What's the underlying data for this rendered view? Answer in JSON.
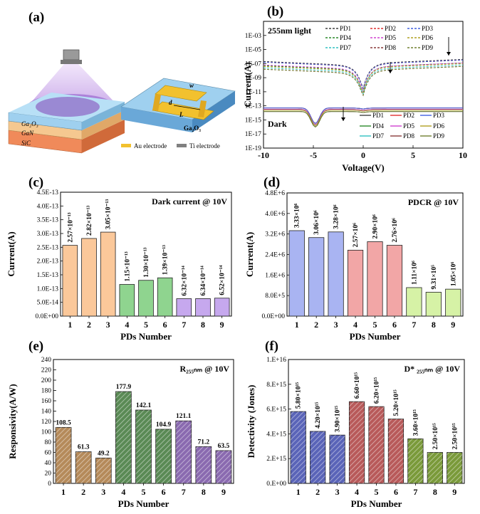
{
  "panel_labels": {
    "a": "(a)",
    "b": "(b)",
    "c": "(c)",
    "d": "(d)",
    "e": "(e)",
    "f": "(f)"
  },
  "schematic": {
    "layer_ga2o3": "Ga₂O₃",
    "layer_gan": "GaN",
    "layer_sic": "SiC",
    "device_substrate": "Ga₂O₃",
    "dim_w": "w",
    "dim_d": "d",
    "dim_l": "L",
    "legend_au": "Au electrode",
    "legend_ti": "Ti electrode",
    "colors": {
      "au": "#f2c12e",
      "ti": "#808080",
      "gan": "#f5c890",
      "sic": "#f08a5a",
      "ga2o3": "#9fd0ef",
      "light": "#c9a6e6"
    }
  },
  "chart_data": [
    {
      "panel": "b",
      "type": "line",
      "annotations": [
        "255nm light",
        "Dark"
      ],
      "xlabel": "Voltage(V)",
      "ylabel": "Current(A)",
      "xlim": [
        -10,
        10
      ],
      "ylim_log10": [
        -19,
        -1
      ],
      "xticks": [
        "-10",
        "-5",
        "0",
        "5",
        "10"
      ],
      "yticks": [
        "1E-19",
        "1E-17",
        "1E-15",
        "1E-13",
        "1E-11",
        "1E-09",
        "1E-07",
        "1E-05",
        "1E-03"
      ],
      "scale_y": "log",
      "series_names": [
        "PD1",
        "PD2",
        "PD3",
        "PD4",
        "PD5",
        "PD6",
        "PD7",
        "PD8",
        "PD9"
      ],
      "series_colors": [
        "#404040",
        "#e03030",
        "#4060e0",
        "#2a8a2a",
        "#d040d0",
        "#b0a020",
        "#30c0c0",
        "#8a3a3a",
        "#708030"
      ],
      "light_log_left": [
        -6.7,
        -6.8,
        -6.8,
        -7.3,
        -7.2,
        -7.4,
        -7.6,
        -7.8,
        -7.8
      ],
      "light_log_right": [
        -6.4,
        -6.5,
        -6.5,
        -6.9,
        -6.9,
        -7.0,
        -7.2,
        -7.4,
        -7.4
      ],
      "dark_log_level": [
        -13.3,
        -13.3,
        -13.3,
        -13.5,
        -13.5,
        -13.6,
        -13.8,
        -13.8,
        -13.8
      ]
    },
    {
      "panel": "c",
      "type": "bar",
      "title": "Dark current @ 10V",
      "xlabel": "PDs Number",
      "ylabel": "Current(A)",
      "ylim": [
        0,
        4.5e-13
      ],
      "yticks": [
        "0.0E+00",
        "5.0E-14",
        "1.0E-13",
        "1.5E-13",
        "2.0E-13",
        "2.5E-13",
        "3.0E-13",
        "3.5E-13",
        "4.0E-13",
        "4.5E-13"
      ],
      "categories": [
        "1",
        "2",
        "3",
        "4",
        "5",
        "6",
        "7",
        "8",
        "9"
      ],
      "values": [
        2.57e-13,
        2.82e-13,
        3.05e-13,
        1.15e-13,
        1.3e-13,
        1.39e-13,
        6.32e-14,
        6.34e-14,
        6.52e-14
      ],
      "value_labels": [
        "2.57×10⁻¹³",
        "2.82×10⁻¹³",
        "3.05×10⁻¹³",
        "1.15×10⁻¹³",
        "1.30×10⁻¹³",
        "1.39×10⁻¹³",
        "6.32×10⁻¹⁴",
        "6.34×10⁻¹⁴",
        "6.52×10⁻¹⁴"
      ],
      "colors": [
        "#fbc89a",
        "#fbc89a",
        "#fbc89a",
        "#8fd48f",
        "#8fd48f",
        "#8fd48f",
        "#c6a8ee",
        "#c6a8ee",
        "#c6a8ee"
      ]
    },
    {
      "panel": "d",
      "type": "bar",
      "title": "PDCR @ 10V",
      "xlabel": "PDs Number",
      "ylabel": "Current(A)",
      "ylim": [
        0,
        4800000.0
      ],
      "yticks": [
        "0.0E+00",
        "8.0E+5",
        "1.6E+6",
        "2.4E+6",
        "3.2E+6",
        "4.0E+6",
        "4.8E+6"
      ],
      "categories": [
        "1",
        "2",
        "3",
        "4",
        "5",
        "6",
        "7",
        "8",
        "9"
      ],
      "values": [
        3330000.0,
        3060000.0,
        3280000.0,
        2570000.0,
        2900000.0,
        2760000.0,
        1110000.0,
        931000.0,
        1050000.0
      ],
      "value_labels": [
        "3.33×10⁶",
        "3.06×10⁶",
        "3.28×10⁶",
        "2.57×10⁶",
        "2.90×10⁶",
        "2.76×10⁶",
        "1.11×10⁶",
        "9.31×10⁵",
        "1.05×10⁶"
      ],
      "colors": [
        "#a9b4f2",
        "#a9b4f2",
        "#a9b4f2",
        "#f2a6a6",
        "#f2a6a6",
        "#f2a6a6",
        "#d6f2a6",
        "#d6f2a6",
        "#d6f2a6"
      ]
    },
    {
      "panel": "e",
      "type": "bar",
      "title": "R₂₅₅ₙₘ @ 10V",
      "xlabel": "PDs Number",
      "ylabel": "Responsivity(A/W)",
      "ylim": [
        0,
        240
      ],
      "yticks": [
        "0",
        "20",
        "40",
        "60",
        "80",
        "100",
        "120",
        "140",
        "160",
        "180",
        "200",
        "220",
        "240"
      ],
      "categories": [
        "1",
        "2",
        "3",
        "4",
        "5",
        "6",
        "7",
        "8",
        "9"
      ],
      "values": [
        108.5,
        61.3,
        49.2,
        177.9,
        142.1,
        104.9,
        121.1,
        71.2,
        63.5
      ],
      "value_labels": [
        "108.5",
        "61.3",
        "49.2",
        "177.9",
        "142.1",
        "104.9",
        "121.1",
        "71.2",
        "63.5"
      ],
      "colors": [
        "#b58a5a",
        "#b58a5a",
        "#b58a5a",
        "#5a8a55",
        "#5a8a55",
        "#5a8a55",
        "#8a6ab0",
        "#8a6ab0",
        "#8a6ab0"
      ]
    },
    {
      "panel": "f",
      "type": "bar",
      "title": "D* ₂₅₅ₙₘ @ 10V",
      "xlabel": "PDs Number",
      "ylabel": "Detectivity (Jones)",
      "ylim": [
        0,
        1e+16
      ],
      "yticks": [
        "0.E+00",
        "2.E+15",
        "4.E+15",
        "6.E+15",
        "8.E+15",
        "1.E+16"
      ],
      "categories": [
        "1",
        "2",
        "3",
        "4",
        "5",
        "6",
        "7",
        "8",
        "9"
      ],
      "values": [
        5800000000000000.0,
        4200000000000000.0,
        3900000000000000.0,
        6600000000000000.0,
        6200000000000000.0,
        5200000000000000.0,
        3600000000000000.0,
        2500000000000000.0,
        2500000000000000.0
      ],
      "value_labels": [
        "5.80×10¹⁵",
        "4.20×10¹⁵",
        "3.90×10¹⁵",
        "6.60×10¹⁵",
        "6.20×10¹⁵",
        "5.20×10¹⁵",
        "3.60×10¹⁵",
        "2.50×10¹⁵",
        "2.50×10¹⁵"
      ],
      "colors": [
        "#5a64b8",
        "#5a64b8",
        "#5a64b8",
        "#b85a5a",
        "#b85a5a",
        "#b85a5a",
        "#7a9a3a",
        "#7a9a3a",
        "#7a9a3a"
      ]
    }
  ]
}
